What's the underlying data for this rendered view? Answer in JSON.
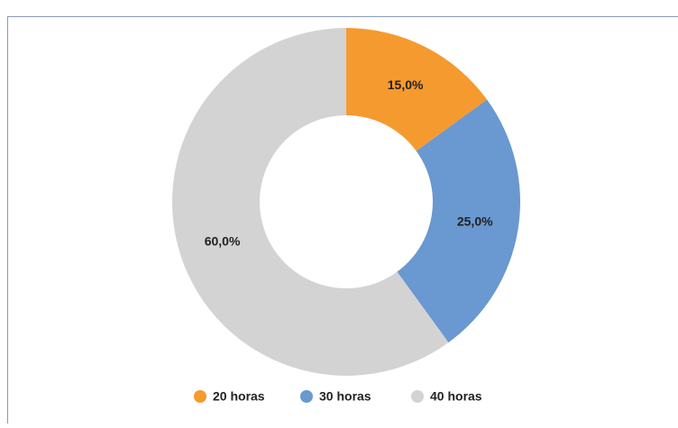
{
  "chart_data": {
    "type": "donut",
    "categories": [
      "20 horas",
      "30 horas",
      "40 horas"
    ],
    "values": [
      15,
      25,
      60
    ],
    "value_labels": [
      "15,0%",
      "25,0%",
      "60,0%"
    ],
    "colors": [
      "#f59a2f",
      "#6a98d0",
      "#d3d3d3"
    ],
    "legend": "bottom"
  }
}
